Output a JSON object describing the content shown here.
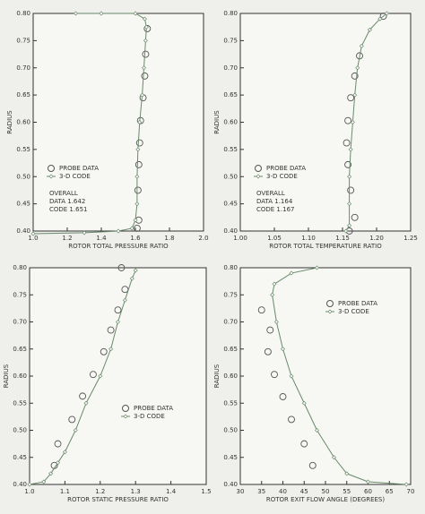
{
  "chart_data": [
    {
      "type": "line",
      "ylabel": "RADIUS",
      "xlabel": "ROTOR TOTAL PRESSURE RATIO",
      "xlim": [
        1.0,
        2.0
      ],
      "ylim": [
        0.4,
        0.8
      ],
      "xticks": [
        {
          "value": 1.0,
          "label": "1.0"
        },
        1.2,
        1.4,
        1.6,
        1.8,
        {
          "value": 2.0,
          "label": "2.0"
        }
      ],
      "yticks": [
        {
          "value": 0.4,
          "label": "0.40"
        },
        0.45,
        {
          "value": 0.5,
          "label": "0.50"
        },
        0.55,
        {
          "value": 0.6,
          "label": "0.60"
        },
        0.65,
        {
          "value": 0.7,
          "label": "0.70"
        },
        0.75,
        {
          "value": 0.8,
          "label": "0.80"
        }
      ],
      "legend": "lower left",
      "annotations": [
        "OVERALL",
        "DATA 1.642",
        "CODE 1.651"
      ],
      "series": [
        {
          "name": "PROBE DATA",
          "marker": "circle",
          "color": "#555",
          "x": [
            1.67,
            1.66,
            1.655,
            1.645,
            1.63,
            1.625,
            1.62,
            1.615,
            1.62,
            1.61
          ],
          "y": [
            0.772,
            0.725,
            0.685,
            0.645,
            0.603,
            0.562,
            0.522,
            0.475,
            0.42,
            0.405
          ]
        },
        {
          "name": "3-D CODE",
          "marker": "diamond",
          "color": "#6a8a6a",
          "x": [
            1.0,
            1.3,
            1.5,
            1.58,
            1.6,
            1.61,
            1.61,
            1.615,
            1.625,
            1.64,
            1.65,
            1.66,
            1.665,
            1.655,
            1.6,
            1.4,
            1.25
          ],
          "y": [
            0.395,
            0.397,
            0.4,
            0.405,
            0.42,
            0.45,
            0.5,
            0.55,
            0.6,
            0.65,
            0.7,
            0.75,
            0.775,
            0.79,
            0.8,
            0.8,
            0.8
          ]
        }
      ]
    },
    {
      "type": "line",
      "ylabel": "RADIUS",
      "xlabel": "ROTOR TOTAL TEMPERATURE RATIO",
      "xlim": [
        1.0,
        1.25
      ],
      "ylim": [
        0.4,
        0.8
      ],
      "xticks": [
        {
          "value": 1.0,
          "label": "1.00"
        },
        1.05,
        {
          "value": 1.1,
          "label": "1.10"
        },
        1.15,
        {
          "value": 1.2,
          "label": "1.20"
        },
        1.25
      ],
      "yticks": [
        {
          "value": 0.4,
          "label": "0.40"
        },
        0.45,
        {
          "value": 0.5,
          "label": "0.50"
        },
        0.55,
        {
          "value": 0.6,
          "label": "0.60"
        },
        0.65,
        {
          "value": 0.7,
          "label": "0.70"
        },
        0.75,
        {
          "value": 0.8,
          "label": "0.80"
        }
      ],
      "legend": "lower left",
      "annotations": [
        "OVERALL",
        "DATA 1.164",
        "CODE 1.167"
      ],
      "series": [
        {
          "name": "PROBE DATA",
          "marker": "circle",
          "color": "#555",
          "x": [
            1.21,
            1.175,
            1.168,
            1.162,
            1.158,
            1.156,
            1.158,
            1.162,
            1.168,
            1.16
          ],
          "y": [
            0.795,
            0.722,
            0.685,
            0.645,
            0.603,
            0.562,
            0.522,
            0.475,
            0.425,
            0.4
          ]
        },
        {
          "name": "3-D CODE",
          "marker": "diamond",
          "color": "#6a8a6a",
          "x": [
            1.155,
            1.16,
            1.16,
            1.16,
            1.162,
            1.165,
            1.168,
            1.172,
            1.178,
            1.19,
            1.205,
            1.215
          ],
          "y": [
            0.4,
            0.41,
            0.45,
            0.5,
            0.55,
            0.6,
            0.65,
            0.7,
            0.74,
            0.77,
            0.79,
            0.8
          ]
        }
      ]
    },
    {
      "type": "line",
      "ylabel": "RADIUS",
      "xlabel": "ROTOR STATIC PRESSURE RATIO",
      "xlim": [
        1.0,
        1.5
      ],
      "ylim": [
        0.4,
        0.8
      ],
      "xticks": [
        {
          "value": 1.0,
          "label": "1.0"
        },
        1.1,
        1.2,
        1.3,
        1.4,
        1.5
      ],
      "yticks": [
        {
          "value": 0.4,
          "label": "0.40"
        },
        0.45,
        {
          "value": 0.5,
          "label": "0.50"
        },
        0.55,
        {
          "value": 0.6,
          "label": "0.60"
        },
        0.65,
        {
          "value": 0.7,
          "label": "0.70"
        },
        0.75,
        {
          "value": 0.8,
          "label": "0.80"
        }
      ],
      "legend": "lower right",
      "series": [
        {
          "name": "PROBE DATA",
          "marker": "circle",
          "color": "#555",
          "x": [
            1.07,
            1.08,
            1.12,
            1.15,
            1.18,
            1.21,
            1.23,
            1.25,
            1.27,
            1.26
          ],
          "y": [
            0.435,
            0.475,
            0.52,
            0.563,
            0.603,
            0.645,
            0.685,
            0.722,
            0.76,
            0.8
          ]
        },
        {
          "name": "3-D CODE",
          "marker": "diamond",
          "color": "#6a8a6a",
          "x": [
            1.0,
            1.04,
            1.06,
            1.08,
            1.1,
            1.13,
            1.16,
            1.2,
            1.23,
            1.25,
            1.27,
            1.29,
            1.3
          ],
          "y": [
            0.4,
            0.405,
            0.42,
            0.44,
            0.46,
            0.5,
            0.55,
            0.6,
            0.65,
            0.7,
            0.74,
            0.78,
            0.795
          ]
        }
      ]
    },
    {
      "type": "line",
      "ylabel": "RADIUS",
      "xlabel": "ROTOR EXIT FLOW ANGLE (DEGREES)",
      "xlim": [
        30,
        70
      ],
      "ylim": [
        0.4,
        0.8
      ],
      "xticks": [
        30,
        35,
        40,
        45,
        50,
        55,
        60,
        65,
        70
      ],
      "yticks": [
        {
          "value": 0.4,
          "label": "0.40"
        },
        0.45,
        {
          "value": 0.5,
          "label": "0.50"
        },
        0.55,
        {
          "value": 0.6,
          "label": "0.60"
        },
        0.65,
        {
          "value": 0.7,
          "label": "0.70"
        },
        0.75,
        {
          "value": 0.8,
          "label": "0.80"
        }
      ],
      "legend": "upper right",
      "series": [
        {
          "name": "PROBE DATA",
          "marker": "circle",
          "color": "#555",
          "x": [
            35,
            37,
            36.5,
            38,
            40,
            42,
            45,
            47
          ],
          "y": [
            0.722,
            0.685,
            0.645,
            0.603,
            0.562,
            0.52,
            0.475,
            0.435
          ]
        },
        {
          "name": "3-D CODE",
          "marker": "diamond",
          "color": "#6a8a6a",
          "x": [
            69,
            60,
            55,
            52,
            48,
            45,
            42,
            40,
            38.5,
            37.5,
            38,
            42,
            48
          ],
          "y": [
            0.4,
            0.405,
            0.42,
            0.45,
            0.5,
            0.55,
            0.6,
            0.65,
            0.7,
            0.75,
            0.77,
            0.79,
            0.8
          ]
        }
      ]
    }
  ]
}
